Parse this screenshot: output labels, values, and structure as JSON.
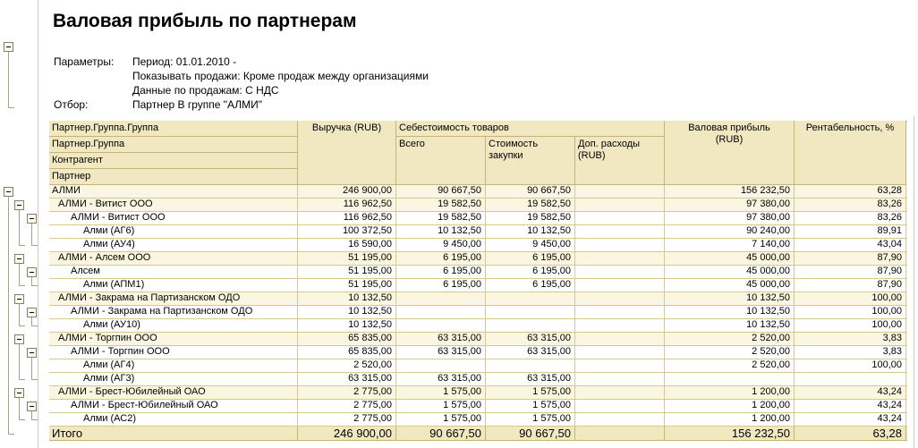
{
  "title": "Валовая прибыль по партнерам",
  "parameters": {
    "label": "Параметры:",
    "lines": [
      "Период: 01.01.2010 -",
      "Показывать продажи: Кроме продаж между организациями",
      "Данные по продажам: С НДС"
    ],
    "filter_label": "Отбор:",
    "filter_value": "Партнер В группе \"АЛМИ\""
  },
  "colors": {
    "header_bg": "#f1e8c2",
    "group_row_bg": "#fbf6e1",
    "leaf_row_bg": "#ffffff",
    "grid_border": "#c3b577",
    "inner_border": "#d6c98f",
    "tree_line": "#a79f8c"
  },
  "table": {
    "headers": {
      "rowgroup": [
        "Партнер.Группа.Группа",
        "Партнер.Группа",
        "Контрагент",
        "Партнер"
      ],
      "revenue": "Выручка (RUB)",
      "cost_group": "Себестоимость товаров",
      "cost_total": "Всего",
      "cost_purchase": "Стоимость закупки",
      "cost_extra": "Доп. расходы (RUB)",
      "gross_profit": "Валовая прибыль (RUB)",
      "margin": "Рентабельность, %"
    },
    "rows": [
      {
        "name": "АЛМИ",
        "level": 0,
        "values": [
          "246 900,00",
          "90 667,50",
          "90 667,50",
          "",
          "156 232,50",
          "63,28"
        ]
      },
      {
        "name": "АЛМИ - Витист ООО",
        "level": 1,
        "values": [
          "116 962,50",
          "19 582,50",
          "19 582,50",
          "",
          "97 380,00",
          "83,26"
        ]
      },
      {
        "name": "АЛМИ - Витист ООО",
        "level": 2,
        "values": [
          "116 962,50",
          "19 582,50",
          "19 582,50",
          "",
          "97 380,00",
          "83,26"
        ]
      },
      {
        "name": "Алми (АГ6)",
        "level": 3,
        "values": [
          "100 372,50",
          "10 132,50",
          "10 132,50",
          "",
          "90 240,00",
          "89,91"
        ]
      },
      {
        "name": "Алми (АУ4)",
        "level": 3,
        "values": [
          "16 590,00",
          "9 450,00",
          "9 450,00",
          "",
          "7 140,00",
          "43,04"
        ]
      },
      {
        "name": "АЛМИ - Алсем ООО",
        "level": 1,
        "values": [
          "51 195,00",
          "6 195,00",
          "6 195,00",
          "",
          "45 000,00",
          "87,90"
        ]
      },
      {
        "name": "Алсем",
        "level": 2,
        "values": [
          "51 195,00",
          "6 195,00",
          "6 195,00",
          "",
          "45 000,00",
          "87,90"
        ]
      },
      {
        "name": "Алми (АПМ1)",
        "level": 3,
        "values": [
          "51 195,00",
          "6 195,00",
          "6 195,00",
          "",
          "45 000,00",
          "87,90"
        ]
      },
      {
        "name": "АЛМИ - Закрама на Партизанском ОДО",
        "level": 1,
        "values": [
          "10 132,50",
          "",
          "",
          "",
          "10 132,50",
          "100,00"
        ]
      },
      {
        "name": "АЛМИ - Закрама на Партизанском ОДО",
        "level": 2,
        "values": [
          "10 132,50",
          "",
          "",
          "",
          "10 132,50",
          "100,00"
        ]
      },
      {
        "name": "Алми (АУ10)",
        "level": 3,
        "values": [
          "10 132,50",
          "",
          "",
          "",
          "10 132,50",
          "100,00"
        ]
      },
      {
        "name": "АЛМИ - Торгпин ООО",
        "level": 1,
        "values": [
          "65 835,00",
          "63 315,00",
          "63 315,00",
          "",
          "2 520,00",
          "3,83"
        ]
      },
      {
        "name": "АЛМИ - Торгпин ООО",
        "level": 2,
        "values": [
          "65 835,00",
          "63 315,00",
          "63 315,00",
          "",
          "2 520,00",
          "3,83"
        ]
      },
      {
        "name": "Алми (АГ4)",
        "level": 3,
        "values": [
          "2 520,00",
          "",
          "",
          "",
          "2 520,00",
          "100,00"
        ]
      },
      {
        "name": "Алми (АГ3)",
        "level": 3,
        "values": [
          "63 315,00",
          "63 315,00",
          "63 315,00",
          "",
          "",
          ""
        ]
      },
      {
        "name": "АЛМИ - Брест-Юбилейный ОАО",
        "level": 1,
        "values": [
          "2 775,00",
          "1 575,00",
          "1 575,00",
          "",
          "1 200,00",
          "43,24"
        ]
      },
      {
        "name": "АЛМИ - Брест-Юбилейный ОАО",
        "level": 2,
        "values": [
          "2 775,00",
          "1 575,00",
          "1 575,00",
          "",
          "1 200,00",
          "43,24"
        ]
      },
      {
        "name": "Алми (АС2)",
        "level": 3,
        "values": [
          "2 775,00",
          "1 575,00",
          "1 575,00",
          "",
          "1 200,00",
          "43,24"
        ]
      }
    ],
    "total": {
      "label": "Итого",
      "values": [
        "246 900,00",
        "90 667,50",
        "90 667,50",
        "",
        "156 232,50",
        "63,28"
      ]
    }
  }
}
